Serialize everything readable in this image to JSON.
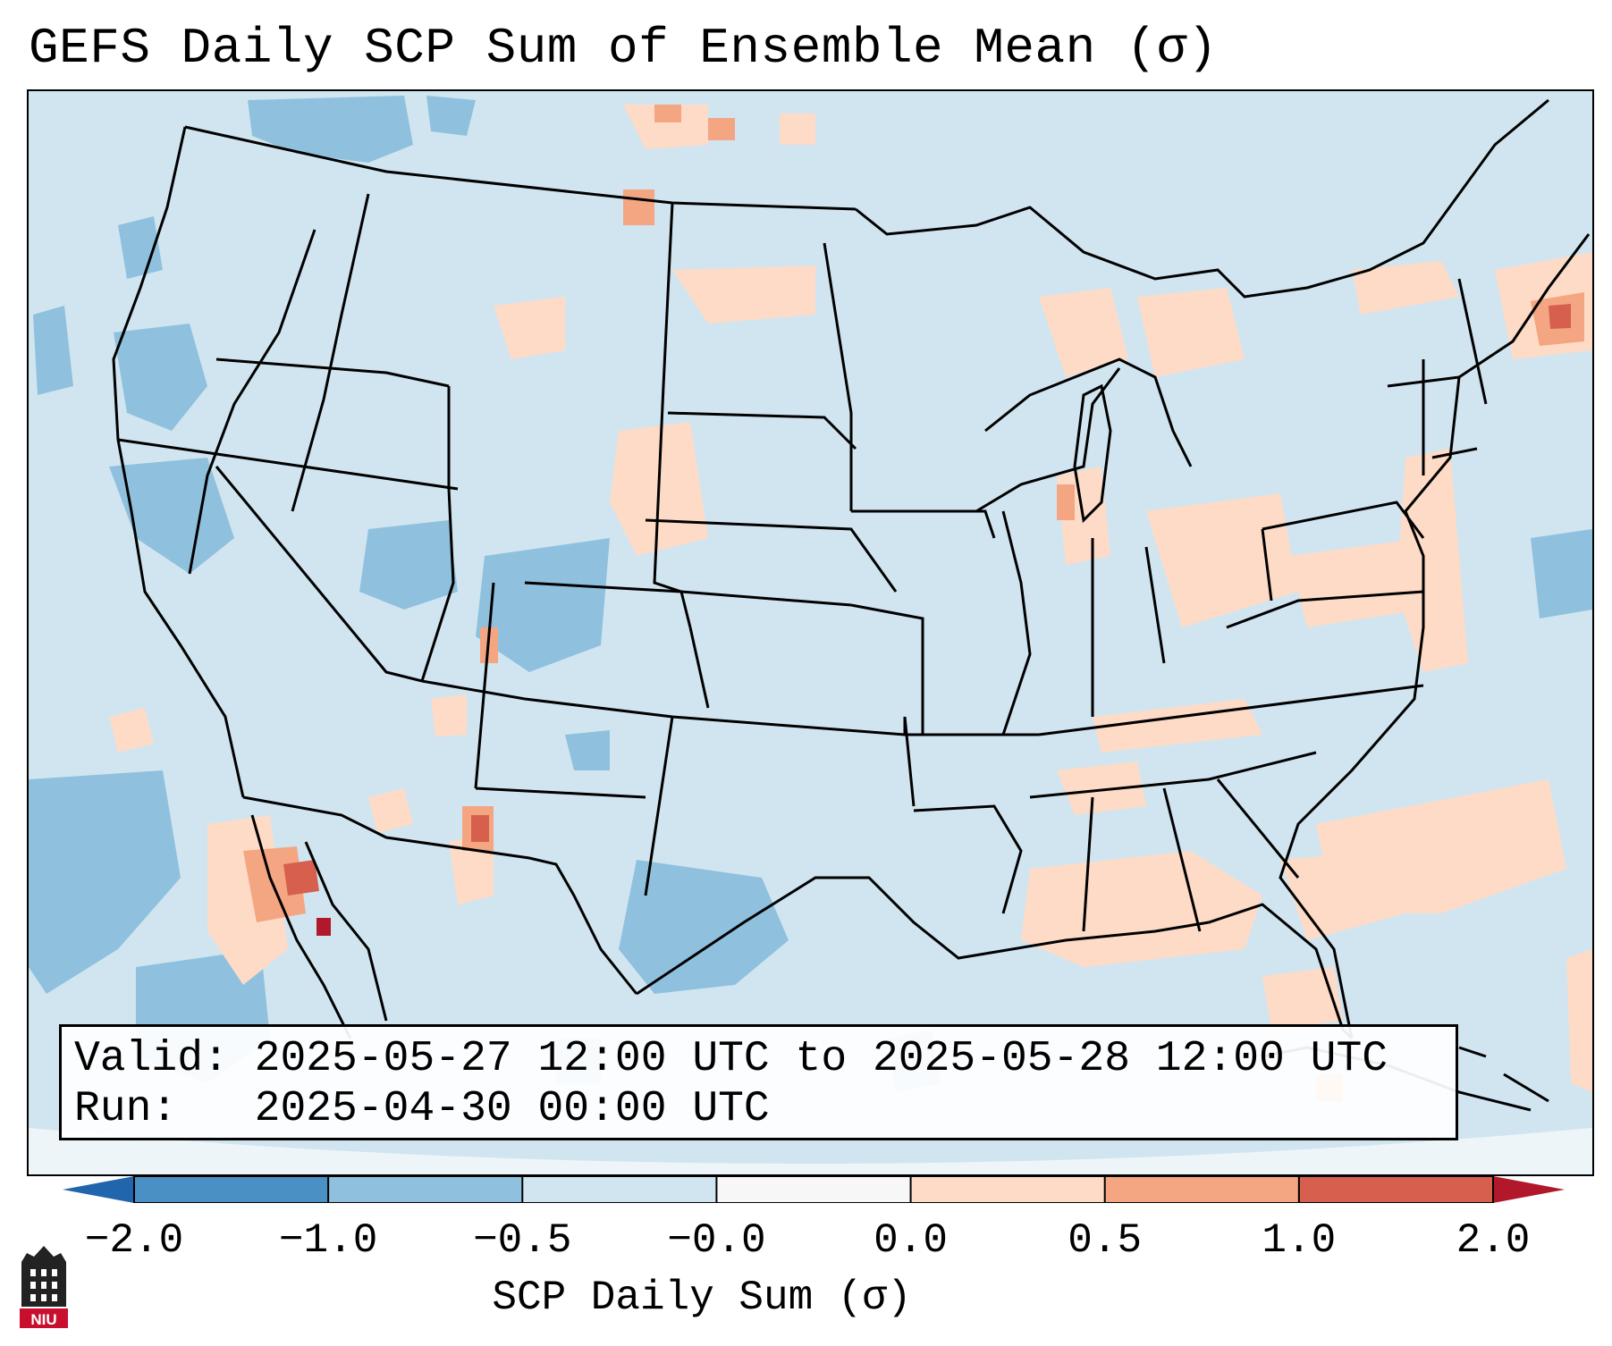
{
  "title": "GEFS Daily SCP Sum of Ensemble Mean (σ)",
  "info": {
    "valid_label": "Valid:",
    "valid_value": "2025-05-27 12:00 UTC to 2025-05-28 12:00 UTC",
    "run_label": "Run:",
    "run_value": "2025-04-30 00:00 UTC"
  },
  "colorbar": {
    "label": "SCP Daily Sum (σ)",
    "ticks": [
      "−2.0",
      "−1.0",
      "−0.5",
      "−0.0",
      "0.0",
      "0.5",
      "1.0",
      "2.0"
    ],
    "colors": [
      "#4a90c4",
      "#8fc1de",
      "#d1e5f0",
      "#f7f7f7",
      "#fddbc7",
      "#f4a582",
      "#d6604d"
    ],
    "extend_low_color": "#2166ac",
    "extend_high_color": "#b2182b",
    "extend": "both"
  },
  "map": {
    "region": "Contiguous United States",
    "background_value_color": "#d1e5f0",
    "ocean_color": "#cfe2ef"
  },
  "logo": {
    "text": "NIU",
    "icon": "university-tower-logo"
  }
}
